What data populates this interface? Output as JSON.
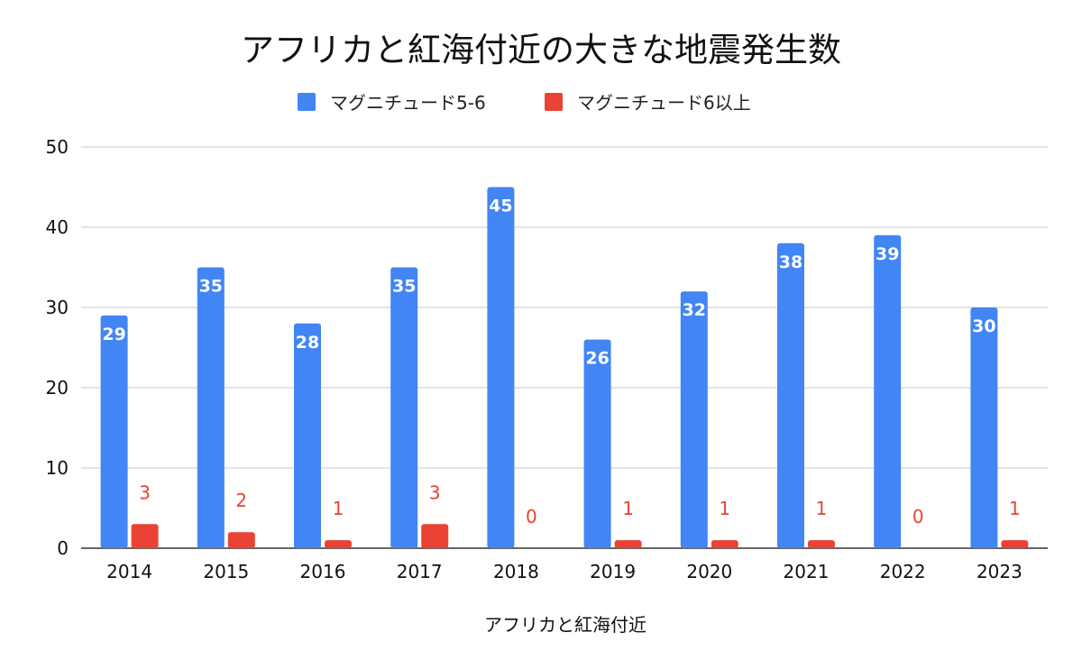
{
  "chart_data": {
    "type": "bar",
    "title": "アフリカと紅海付近の大きな地震発生数",
    "xlabel": "アフリカと紅海付近",
    "ylabel": "",
    "ylim": [
      0,
      50
    ],
    "yticks": [
      0,
      10,
      20,
      30,
      40,
      50
    ],
    "grid": true,
    "legend_position": "top",
    "categories": [
      "2014",
      "2015",
      "2016",
      "2017",
      "2018",
      "2019",
      "2020",
      "2021",
      "2022",
      "2023"
    ],
    "series": [
      {
        "name": "マグニチュード5-6",
        "color": "#4285f4",
        "values": [
          29,
          35,
          28,
          35,
          45,
          26,
          32,
          38,
          39,
          30
        ]
      },
      {
        "name": "マグニチュード6以上",
        "color": "#ea4335",
        "values": [
          3,
          2,
          1,
          3,
          0,
          1,
          1,
          1,
          0,
          1
        ]
      }
    ]
  }
}
